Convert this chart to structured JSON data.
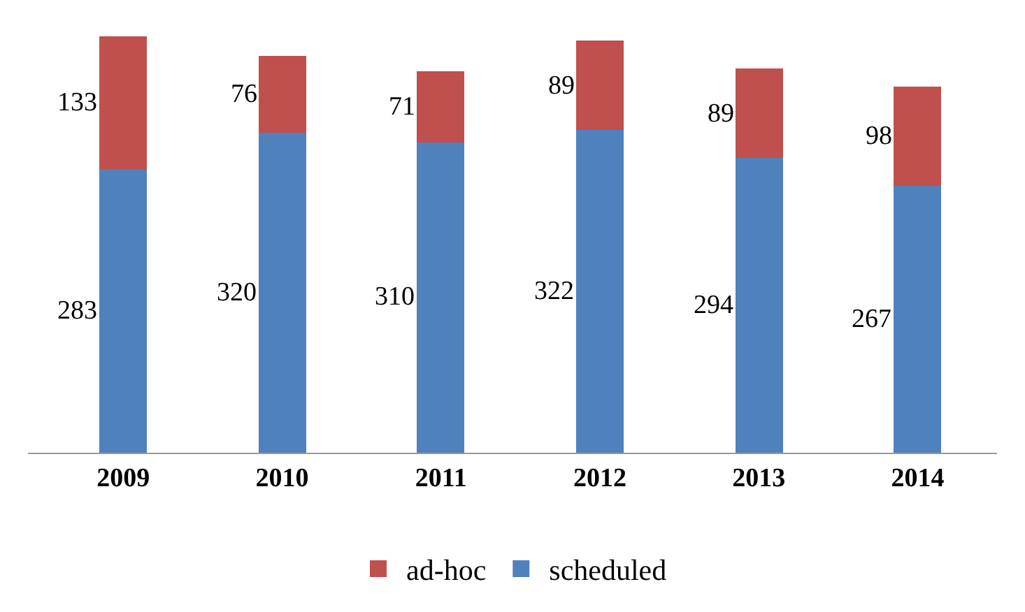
{
  "chart_data": {
    "type": "bar",
    "stacked": true,
    "categories": [
      "2009",
      "2010",
      "2011",
      "2012",
      "2013",
      "2014"
    ],
    "series": [
      {
        "name": "scheduled",
        "color": "#4f81bd",
        "values": [
          283,
          320,
          310,
          322,
          294,
          267
        ]
      },
      {
        "name": "ad-hoc",
        "color": "#c0504d",
        "values": [
          133,
          76,
          71,
          89,
          89,
          98
        ]
      }
    ],
    "data_labels": true,
    "legend": "bottom",
    "grid": false
  }
}
